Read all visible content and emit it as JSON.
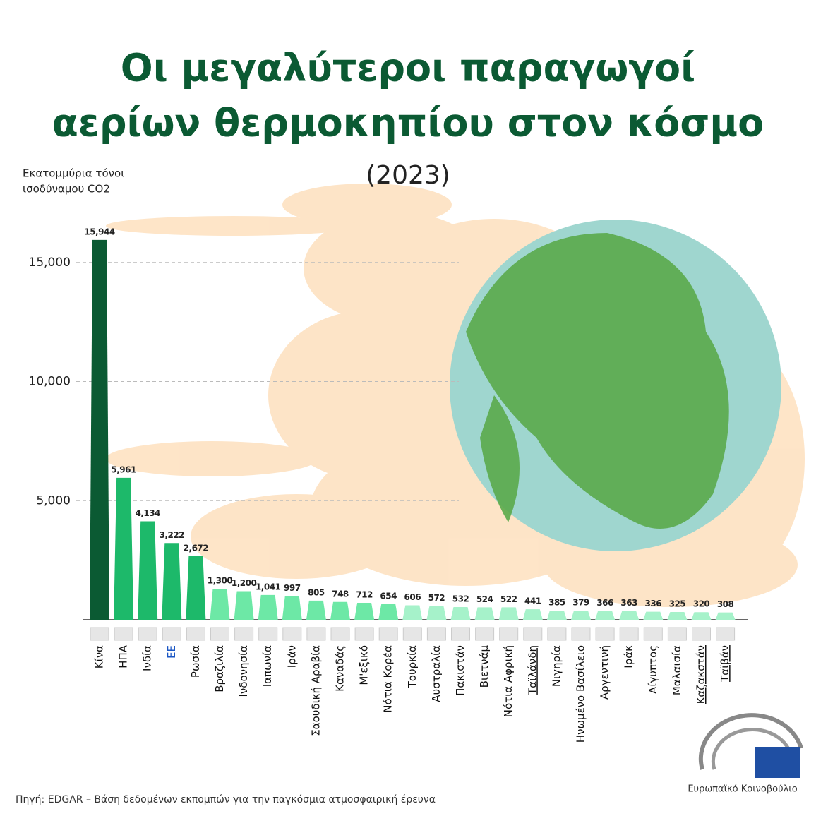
{
  "chart_data": {
    "type": "bar",
    "title": [
      "Οι μεγαλύτεροι παραγωγοί",
      "αερίων θερμοκηπίου στον κόσμο"
    ],
    "subtitle": "(2023)",
    "y_label": [
      "Εκατομμύρια  τόνοι",
      "ισοδύναμου CO2"
    ],
    "categories": [
      "Κίνα",
      "ΗΠΑ",
      "Ινδία",
      "ΕΕ",
      "Ρωσία",
      "Βραζιλία",
      "Ινδονησία",
      "Ιαπωνία",
      "Ιράν",
      "Σαουδική Αραβία",
      "Καναδάς",
      "Μ'εξικό",
      "Νότια Κορέα",
      "Τουρκία",
      "Αυστραλία",
      "Πακιστάν",
      "Βιετνάμ",
      "Νότια Αφρική",
      "Ταϊλάνδη",
      "Νιγηρία",
      "Ηνωμένο Βασίλειο",
      "Αργεντινή",
      "Ιράκ",
      "Αίγυπτος",
      "Μαλαισία",
      "Καζακστάν",
      "Ταϊβάν"
    ],
    "values": [
      15944,
      5961,
      4134,
      3222,
      2672,
      1300,
      1200,
      1041,
      997,
      805,
      748,
      712,
      654,
      606,
      572,
      532,
      524,
      522,
      441,
      385,
      379,
      366,
      363,
      336,
      325,
      320,
      308
    ],
    "value_labels": [
      "15,944",
      "5,961",
      "4,134",
      "3,222",
      "2,672",
      "1,300",
      "1,200",
      "1,041",
      "997",
      "805",
      "748",
      "712",
      "654",
      "606",
      "572",
      "532",
      "524",
      "522",
      "441",
      "385",
      "379",
      "366",
      "363",
      "336",
      "325",
      "320",
      "308"
    ],
    "colors": [
      "#0b5a33",
      "#1db96a",
      "#1db96a",
      "#1db96a",
      "#1db96a",
      "#6de8a6",
      "#6de8a6",
      "#6de8a6",
      "#6de8a6",
      "#6de8a6",
      "#6de8a6",
      "#6de8a6",
      "#6de8a6",
      "#a6f2ca",
      "#a6f2ca",
      "#a6f2ca",
      "#a6f2ca",
      "#a6f2ca",
      "#a6f2ca",
      "#a6f2ca",
      "#a6f2ca",
      "#a6f2ca",
      "#a6f2ca",
      "#a6f2ca",
      "#a6f2ca",
      "#a6f2ca",
      "#a6f2ca"
    ],
    "ylim": [
      0,
      16000
    ],
    "yticks": [
      {
        "value": 5000,
        "label": "5,000"
      },
      {
        "value": 10000,
        "label": "10,000"
      },
      {
        "value": 15000,
        "label": "15,000"
      }
    ],
    "grid": true,
    "source": "Πηγή: EDGAR – Βάση δεδομένων εκπομπών για την παγκόσμια ατμοσφαιρική έρευνα",
    "logo": "Ευρωπαϊκό Κοινοβούλιο"
  }
}
